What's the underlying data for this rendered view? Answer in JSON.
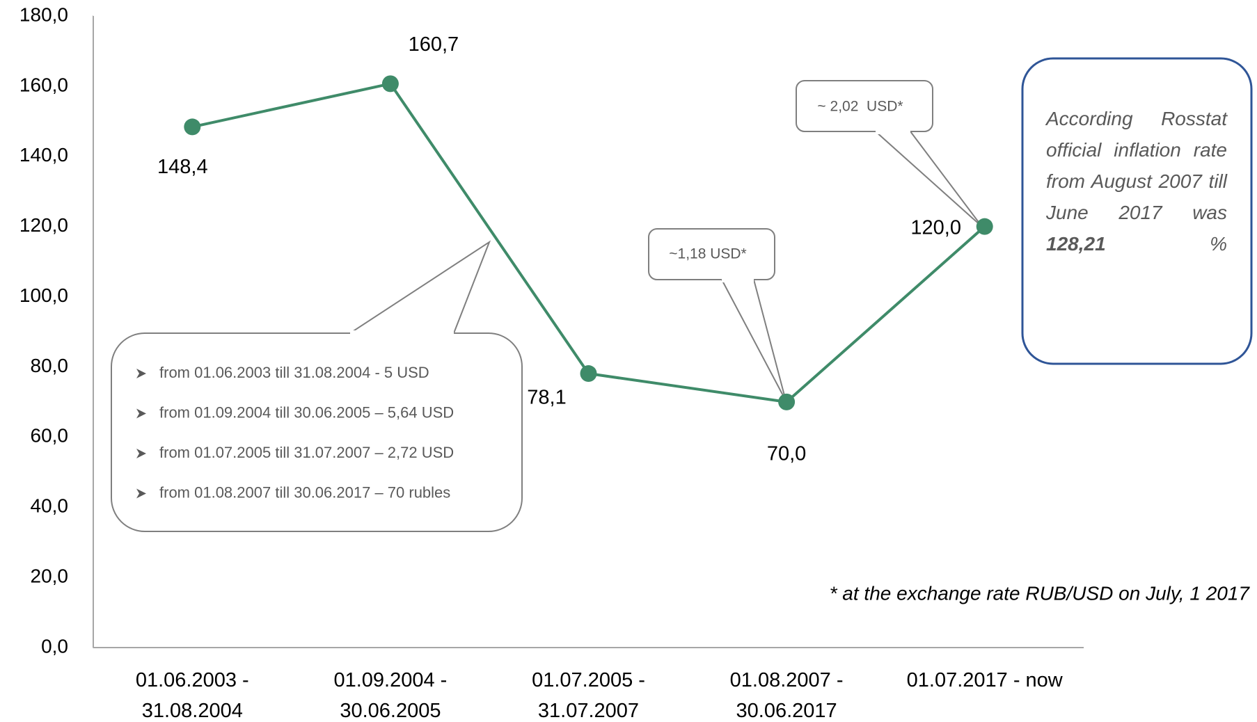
{
  "chart_data": {
    "type": "line",
    "categories": [
      "01.06.2003 - 31.08.2004",
      "01.09.2004 - 30.06.2005",
      "01.07.2005 - 31.07.2007",
      "01.08.2007 - 30.06.2017",
      "01.07.2017 - now"
    ],
    "values": [
      148.4,
      160.7,
      78.1,
      70.0,
      120.0
    ],
    "value_labels": [
      "148,4",
      "160,7",
      "78,1",
      "70,0",
      "120,0"
    ],
    "color": "#3f8b69",
    "ylim": [
      0,
      180
    ],
    "yticks": [
      {
        "value": 0,
        "label": "0,0"
      },
      {
        "value": 20,
        "label": "20,0"
      },
      {
        "value": 40,
        "label": "40,0"
      },
      {
        "value": 60,
        "label": "60,0"
      },
      {
        "value": 80,
        "label": "80,0"
      },
      {
        "value": 100,
        "label": "100,0"
      },
      {
        "value": 120,
        "label": "120,0"
      },
      {
        "value": 140,
        "label": "140,0"
      },
      {
        "value": 160,
        "label": "160,0"
      },
      {
        "value": 180,
        "label": "180,0"
      }
    ],
    "grid": false,
    "bullets": [
      "from 01.06.2003 till 31.08.2004 - 5 USD",
      "from 01.09.2004 till 30.06.2005 – 5,64 USD",
      "from 01.07.2005 till 31.07.2007 – 2,72 USD",
      "from 01.08.2007 till 30.06.2017 – 70 rubles"
    ],
    "callouts": [
      "~1,18 USD*",
      "~ 2,02  USD*"
    ],
    "note": {
      "text": "According Rosstat official inflation rate from August 2007 till June 2017 was",
      "emphasis": "128,21",
      "suffix": "%"
    },
    "footnote": "* at the exchange rate RUB/USD on July, 1 2017"
  }
}
